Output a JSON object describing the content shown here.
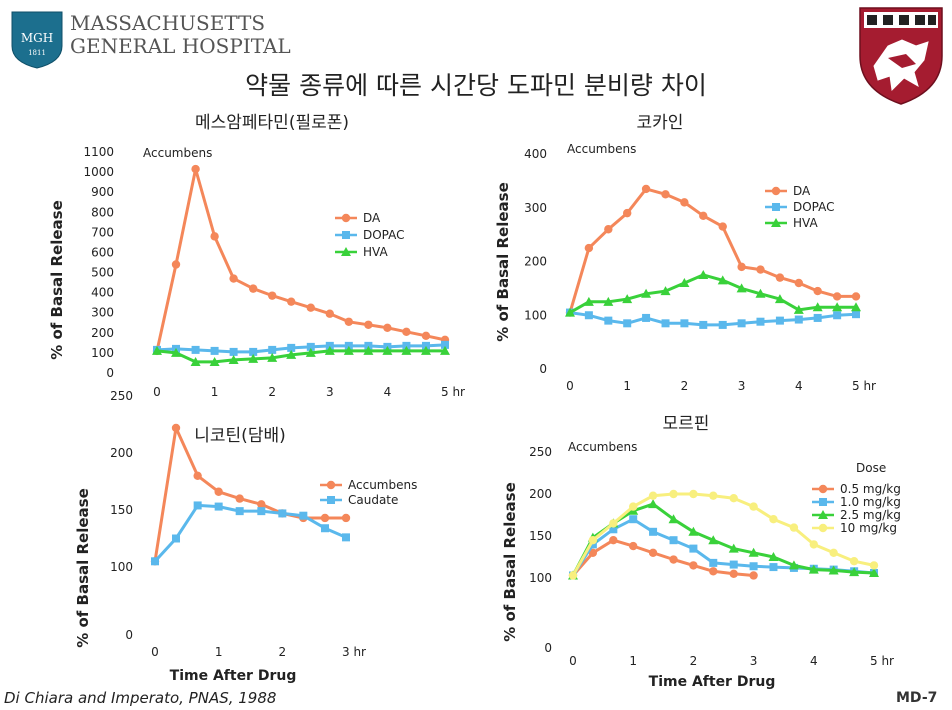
{
  "header": {
    "logo_left_line1": "MASSACHUSETTS",
    "logo_left_line2": "GENERAL HOSPITAL",
    "logo_left_badge": "MGH",
    "logo_left_year": "1811",
    "title": "약물 종류에 따른 시간당 도파민 분비량 차이"
  },
  "footer": {
    "citation": "Di Chiara and Imperato, PNAS, 1988",
    "slide_id": "MD-7"
  },
  "colors": {
    "orange": "#f4875a",
    "blue": "#5ab8ec",
    "green": "#39d13a",
    "yellow": "#f8ef7e",
    "axis": "#222222"
  },
  "chart_data": [
    {
      "type": "line",
      "title": "메스암페타민(필로폰)",
      "annotation": "Accumbens",
      "ylabel": "% of Basal Release",
      "xlabel": "",
      "x_ticks": [
        "0",
        "1",
        "2",
        "3",
        "4",
        "5 hr"
      ],
      "y_ticks": [
        "0",
        "100",
        "200",
        "300",
        "400",
        "500",
        "600",
        "700",
        "800",
        "900",
        "1000",
        "1100"
      ],
      "xlim": [
        0,
        5
      ],
      "ylim": [
        0,
        1100
      ],
      "legend": "right",
      "series": [
        {
          "name": "DA",
          "marker": "circle",
          "color": "#f4875a",
          "x": [
            0,
            0.33,
            0.67,
            1.0,
            1.33,
            1.67,
            2.0,
            2.33,
            2.67,
            3.0,
            3.33,
            3.67,
            4.0,
            4.33,
            4.67,
            5.0
          ],
          "y": [
            110,
            540,
            1015,
            680,
            470,
            420,
            385,
            355,
            325,
            295,
            255,
            240,
            225,
            205,
            185,
            165
          ]
        },
        {
          "name": "DOPAC",
          "marker": "square",
          "color": "#5ab8ec",
          "x": [
            0,
            0.33,
            0.67,
            1.0,
            1.33,
            1.67,
            2.0,
            2.33,
            2.67,
            3.0,
            3.33,
            3.67,
            4.0,
            4.33,
            4.67,
            5.0
          ],
          "y": [
            115,
            120,
            115,
            110,
            105,
            105,
            115,
            125,
            130,
            135,
            135,
            135,
            130,
            135,
            135,
            140
          ]
        },
        {
          "name": "HVA",
          "marker": "triangle",
          "color": "#39d13a",
          "x": [
            0,
            0.33,
            0.67,
            1.0,
            1.33,
            1.67,
            2.0,
            2.33,
            2.67,
            3.0,
            3.33,
            3.67,
            4.0,
            4.33,
            4.67,
            5.0
          ],
          "y": [
            110,
            100,
            55,
            55,
            65,
            70,
            75,
            90,
            100,
            110,
            110,
            110,
            110,
            110,
            110,
            110
          ]
        }
      ]
    },
    {
      "type": "line",
      "title": "코카인",
      "annotation": "Accumbens",
      "ylabel": "% of Basal Release",
      "xlabel": "",
      "x_ticks": [
        "0",
        "1",
        "2",
        "3",
        "4",
        "5 hr"
      ],
      "y_ticks": [
        "0",
        "100",
        "200",
        "300",
        "400"
      ],
      "xlim": [
        0,
        5
      ],
      "ylim": [
        0,
        400
      ],
      "legend": "right",
      "series": [
        {
          "name": "DA",
          "marker": "circle",
          "color": "#f4875a",
          "x": [
            0,
            0.33,
            0.67,
            1.0,
            1.33,
            1.67,
            2.0,
            2.33,
            2.67,
            3.0,
            3.33,
            3.67,
            4.0,
            4.33,
            4.67,
            5.0
          ],
          "y": [
            105,
            225,
            260,
            290,
            335,
            325,
            310,
            285,
            265,
            190,
            185,
            170,
            160,
            145,
            135,
            135
          ]
        },
        {
          "name": "DOPAC",
          "marker": "square",
          "color": "#5ab8ec",
          "x": [
            0,
            0.33,
            0.67,
            1.0,
            1.33,
            1.67,
            2.0,
            2.33,
            2.67,
            3.0,
            3.33,
            3.67,
            4.0,
            4.33,
            4.67,
            5.0
          ],
          "y": [
            105,
            100,
            90,
            85,
            95,
            85,
            85,
            82,
            82,
            85,
            88,
            90,
            92,
            95,
            100,
            102
          ]
        },
        {
          "name": "HVA",
          "marker": "triangle",
          "color": "#39d13a",
          "x": [
            0,
            0.33,
            0.67,
            1.0,
            1.33,
            1.67,
            2.0,
            2.33,
            2.67,
            3.0,
            3.33,
            3.67,
            4.0,
            4.33,
            4.67,
            5.0
          ],
          "y": [
            105,
            125,
            125,
            130,
            140,
            145,
            160,
            175,
            165,
            150,
            140,
            130,
            110,
            115,
            115,
            115
          ]
        }
      ]
    },
    {
      "type": "line",
      "title": "니코틴(담배)",
      "annotation": "",
      "ylabel": "% of Basal Release",
      "xlabel": "Time After Drug",
      "x_ticks": [
        "0",
        "1",
        "2",
        "3 hr"
      ],
      "y_ticks": [
        "0",
        "100",
        "150",
        "200",
        "250"
      ],
      "xlim": [
        0,
        3
      ],
      "ylim": [
        0,
        250
      ],
      "y_scale": "broken",
      "legend": "right",
      "series": [
        {
          "name": "Accumbens",
          "marker": "circle",
          "color": "#f4875a",
          "x": [
            0,
            0.33,
            0.67,
            1.0,
            1.33,
            1.67,
            2.0,
            2.33,
            2.67,
            3.0
          ],
          "y": [
            105,
            222,
            180,
            166,
            160,
            155,
            147,
            143,
            143,
            143
          ]
        },
        {
          "name": "Caudate",
          "marker": "square",
          "color": "#5ab8ec",
          "x": [
            0,
            0.33,
            0.67,
            1.0,
            1.33,
            1.67,
            2.0,
            2.33,
            2.67,
            3.0
          ],
          "y": [
            105,
            125,
            154,
            153,
            149,
            149,
            147,
            145,
            134,
            126
          ]
        }
      ]
    },
    {
      "type": "line",
      "title": "모르핀",
      "annotation": "Accumbens",
      "ylabel": "% of Basal Release",
      "xlabel": "Time After Drug",
      "x_ticks": [
        "0",
        "1",
        "2",
        "3",
        "4",
        "5 hr"
      ],
      "y_ticks": [
        "0",
        "100",
        "150",
        "200",
        "250"
      ],
      "xlim": [
        0,
        5
      ],
      "ylim": [
        0,
        250
      ],
      "y_scale": "broken",
      "legend_title": "Dose",
      "legend": "right",
      "series": [
        {
          "name": "0.5 mg/kg",
          "marker": "circle",
          "color": "#f4875a",
          "x": [
            0,
            0.33,
            0.67,
            1.0,
            1.33,
            1.67,
            2.0,
            2.33,
            2.67,
            3.0
          ],
          "y": [
            103,
            130,
            145,
            138,
            130,
            122,
            115,
            108,
            105,
            103
          ]
        },
        {
          "name": "1.0 mg/kg",
          "marker": "square",
          "color": "#5ab8ec",
          "x": [
            0,
            0.33,
            0.67,
            1.0,
            1.33,
            1.67,
            2.0,
            2.33,
            2.67,
            3.0,
            3.33,
            3.67,
            4.0,
            4.33,
            4.67,
            5.0
          ],
          "y": [
            103,
            140,
            158,
            170,
            155,
            145,
            135,
            118,
            116,
            114,
            113,
            112,
            111,
            110,
            108,
            106
          ]
        },
        {
          "name": "2.5 mg/kg",
          "marker": "triangle",
          "color": "#39d13a",
          "x": [
            0,
            0.33,
            0.67,
            1.0,
            1.33,
            1.67,
            2.0,
            2.33,
            2.67,
            3.0,
            3.33,
            3.67,
            4.0,
            4.33,
            4.67,
            5.0
          ],
          "y": [
            103,
            148,
            165,
            180,
            188,
            170,
            155,
            145,
            135,
            130,
            125,
            115,
            110,
            109,
            107,
            106
          ]
        },
        {
          "name": "10 mg/kg",
          "marker": "circle",
          "color": "#f8ef7e",
          "x": [
            0,
            0.33,
            0.67,
            1.0,
            1.33,
            1.67,
            2.0,
            2.33,
            2.67,
            3.0,
            3.33,
            3.67,
            4.0,
            4.33,
            4.67,
            5.0
          ],
          "y": [
            103,
            145,
            165,
            185,
            198,
            200,
            200,
            198,
            195,
            185,
            170,
            160,
            140,
            130,
            120,
            115
          ]
        }
      ]
    }
  ]
}
